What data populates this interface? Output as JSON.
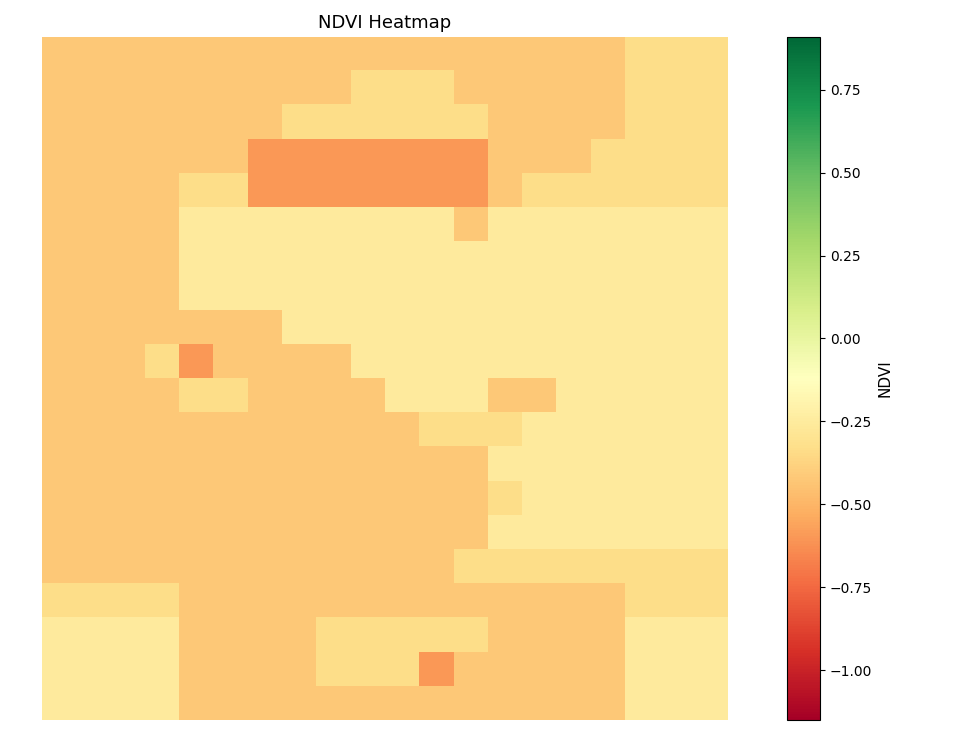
{
  "chart_data": {
    "type": "heatmap",
    "title": "NDVI Heatmap",
    "color": "RdYlGn",
    "tick_labels": false,
    "colorbar_label": "NDVI",
    "color_range": [
      -1.15,
      0.91
    ],
    "color_ticks": [
      {
        "value": -1.0,
        "label": "−1.00"
      },
      {
        "value": -0.75,
        "label": "−0.75"
      },
      {
        "value": -0.5,
        "label": "−0.50"
      },
      {
        "value": -0.25,
        "label": "−0.25"
      },
      {
        "value": 0.0,
        "label": "0.00"
      },
      {
        "value": 0.25,
        "label": "0.25"
      },
      {
        "value": 0.5,
        "label": "0.50"
      },
      {
        "value": 0.75,
        "label": "0.75"
      }
    ],
    "cells": [
      [
        -0.42,
        -0.42,
        -0.42,
        -0.42,
        -0.42,
        -0.42,
        -0.42,
        -0.42,
        -0.42,
        -0.42,
        -0.42,
        -0.42,
        -0.42,
        -0.42,
        -0.42,
        -0.42,
        -0.42,
        -0.33,
        -0.33,
        -0.33
      ],
      [
        -0.42,
        -0.42,
        -0.42,
        -0.42,
        -0.42,
        -0.42,
        -0.42,
        -0.42,
        -0.42,
        -0.33,
        -0.33,
        -0.33,
        -0.42,
        -0.42,
        -0.42,
        -0.42,
        -0.42,
        -0.33,
        -0.33,
        -0.33
      ],
      [
        -0.42,
        -0.42,
        -0.42,
        -0.42,
        -0.42,
        -0.42,
        -0.42,
        -0.33,
        -0.33,
        -0.33,
        -0.33,
        -0.33,
        -0.33,
        -0.42,
        -0.42,
        -0.42,
        -0.42,
        -0.33,
        -0.33,
        -0.33
      ],
      [
        -0.42,
        -0.42,
        -0.42,
        -0.42,
        -0.42,
        -0.42,
        -0.6,
        -0.6,
        -0.6,
        -0.6,
        -0.6,
        -0.6,
        -0.6,
        -0.42,
        -0.42,
        -0.42,
        -0.33,
        -0.33,
        -0.33,
        -0.33
      ],
      [
        -0.42,
        -0.42,
        -0.42,
        -0.42,
        -0.33,
        -0.33,
        -0.6,
        -0.6,
        -0.6,
        -0.6,
        -0.6,
        -0.6,
        -0.6,
        -0.42,
        -0.33,
        -0.33,
        -0.33,
        -0.33,
        -0.33,
        -0.33
      ],
      [
        -0.42,
        -0.42,
        -0.42,
        -0.42,
        -0.25,
        -0.25,
        -0.25,
        -0.25,
        -0.25,
        -0.25,
        -0.25,
        -0.25,
        -0.42,
        -0.25,
        -0.25,
        -0.25,
        -0.25,
        -0.25,
        -0.25,
        -0.25
      ],
      [
        -0.42,
        -0.42,
        -0.42,
        -0.42,
        -0.25,
        -0.25,
        -0.25,
        -0.25,
        -0.25,
        -0.25,
        -0.25,
        -0.25,
        -0.25,
        -0.25,
        -0.25,
        -0.25,
        -0.25,
        -0.25,
        -0.25,
        -0.25
      ],
      [
        -0.42,
        -0.42,
        -0.42,
        -0.42,
        -0.25,
        -0.25,
        -0.25,
        -0.25,
        -0.25,
        -0.25,
        -0.25,
        -0.25,
        -0.25,
        -0.25,
        -0.25,
        -0.25,
        -0.25,
        -0.25,
        -0.25,
        -0.25
      ],
      [
        -0.42,
        -0.42,
        -0.42,
        -0.42,
        -0.42,
        -0.42,
        -0.42,
        -0.25,
        -0.25,
        -0.25,
        -0.25,
        -0.25,
        -0.25,
        -0.25,
        -0.25,
        -0.25,
        -0.25,
        -0.25,
        -0.25,
        -0.25
      ],
      [
        -0.42,
        -0.42,
        -0.42,
        -0.33,
        -0.6,
        -0.42,
        -0.42,
        -0.42,
        -0.42,
        -0.25,
        -0.25,
        -0.25,
        -0.25,
        -0.25,
        -0.25,
        -0.25,
        -0.25,
        -0.25,
        -0.25,
        -0.25
      ],
      [
        -0.42,
        -0.42,
        -0.42,
        -0.42,
        -0.33,
        -0.33,
        -0.42,
        -0.42,
        -0.42,
        -0.42,
        -0.25,
        -0.25,
        -0.25,
        -0.42,
        -0.42,
        -0.25,
        -0.25,
        -0.25,
        -0.25,
        -0.25
      ],
      [
        -0.42,
        -0.42,
        -0.42,
        -0.42,
        -0.42,
        -0.42,
        -0.42,
        -0.42,
        -0.42,
        -0.42,
        -0.42,
        -0.33,
        -0.33,
        -0.33,
        -0.25,
        -0.25,
        -0.25,
        -0.25,
        -0.25,
        -0.25
      ],
      [
        -0.42,
        -0.42,
        -0.42,
        -0.42,
        -0.42,
        -0.42,
        -0.42,
        -0.42,
        -0.42,
        -0.42,
        -0.42,
        -0.42,
        -0.42,
        -0.25,
        -0.25,
        -0.25,
        -0.25,
        -0.25,
        -0.25,
        -0.25
      ],
      [
        -0.42,
        -0.42,
        -0.42,
        -0.42,
        -0.42,
        -0.42,
        -0.42,
        -0.42,
        -0.42,
        -0.42,
        -0.42,
        -0.42,
        -0.42,
        -0.33,
        -0.25,
        -0.25,
        -0.25,
        -0.25,
        -0.25,
        -0.25
      ],
      [
        -0.42,
        -0.42,
        -0.42,
        -0.42,
        -0.42,
        -0.42,
        -0.42,
        -0.42,
        -0.42,
        -0.42,
        -0.42,
        -0.42,
        -0.42,
        -0.25,
        -0.25,
        -0.25,
        -0.25,
        -0.25,
        -0.25,
        -0.25
      ],
      [
        -0.42,
        -0.42,
        -0.42,
        -0.42,
        -0.42,
        -0.42,
        -0.42,
        -0.42,
        -0.42,
        -0.42,
        -0.42,
        -0.42,
        -0.33,
        -0.33,
        -0.33,
        -0.33,
        -0.33,
        -0.33,
        -0.33,
        -0.33
      ],
      [
        -0.33,
        -0.33,
        -0.33,
        -0.33,
        -0.42,
        -0.42,
        -0.42,
        -0.42,
        -0.42,
        -0.42,
        -0.42,
        -0.42,
        -0.42,
        -0.42,
        -0.42,
        -0.42,
        -0.42,
        -0.33,
        -0.33,
        -0.33
      ],
      [
        -0.25,
        -0.25,
        -0.25,
        -0.25,
        -0.42,
        -0.42,
        -0.42,
        -0.42,
        -0.33,
        -0.33,
        -0.33,
        -0.33,
        -0.33,
        -0.42,
        -0.42,
        -0.42,
        -0.42,
        -0.25,
        -0.25,
        -0.25
      ],
      [
        -0.25,
        -0.25,
        -0.25,
        -0.25,
        -0.42,
        -0.42,
        -0.42,
        -0.42,
        -0.33,
        -0.33,
        -0.33,
        -0.6,
        -0.42,
        -0.42,
        -0.42,
        -0.42,
        -0.42,
        -0.25,
        -0.25,
        -0.25
      ],
      [
        -0.25,
        -0.25,
        -0.25,
        -0.25,
        -0.42,
        -0.42,
        -0.42,
        -0.42,
        -0.42,
        -0.42,
        -0.42,
        -0.42,
        -0.42,
        -0.42,
        -0.42,
        -0.42,
        -0.42,
        -0.25,
        -0.25,
        -0.25
      ]
    ]
  }
}
